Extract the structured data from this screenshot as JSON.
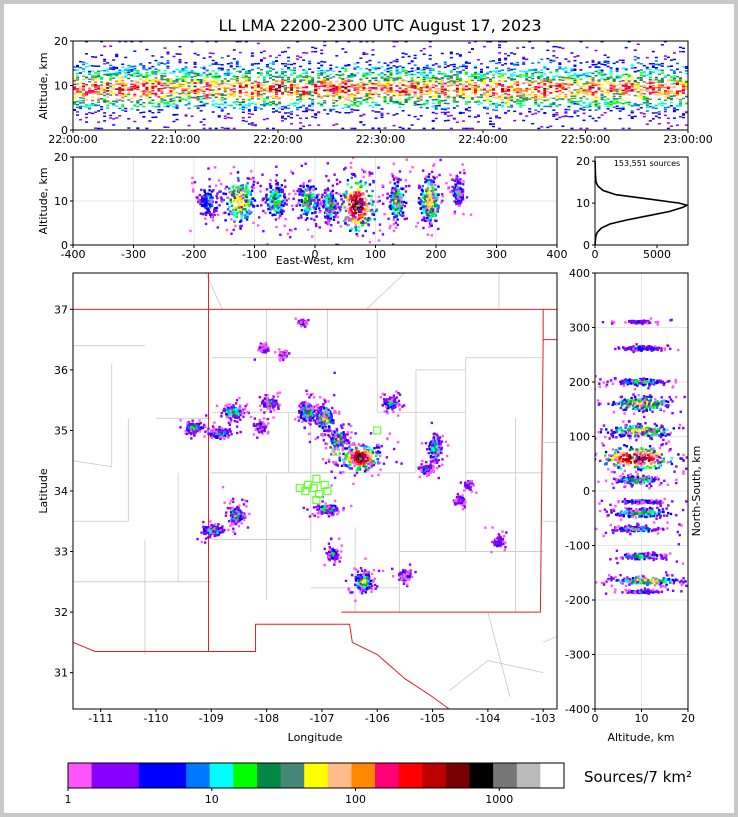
{
  "title": "LL LMA 2200-2300 UTC August 17, 2023",
  "colors": {
    "colorbar": [
      "#ff55ff",
      "#8800ff",
      "#8800ff",
      "#0000ff",
      "#0000ff",
      "#0077ff",
      "#00ffff",
      "#00ff00",
      "#008844",
      "#448877",
      "#ffff00",
      "#ffbb88",
      "#ff8800",
      "#ff0077",
      "#ff0000",
      "#bb0000",
      "#770000",
      "#000000",
      "#777777",
      "#bbbbbb",
      "#ffffff"
    ],
    "state_border": "#dd2222",
    "county_border": "#c8c8c8",
    "marker": "#66ff33"
  },
  "chart_data": [
    {
      "id": "time_height",
      "type": "heatmap",
      "xlabel": "",
      "ylabel": "Altitude, km",
      "x_ticks": [
        "22:00:00",
        "22:10:00",
        "22:20:00",
        "22:30:00",
        "22:40:00",
        "22:50:00",
        "23:00:00"
      ],
      "x_range": [
        "22:00:00",
        "23:00:00"
      ],
      "y_ticks": [
        0,
        10,
        20
      ],
      "ylim": [
        0,
        20
      ],
      "density_profile": {
        "altitude_km": [
          4,
          6,
          8,
          9,
          10,
          11,
          12,
          14,
          16,
          18
        ],
        "relative": [
          0.05,
          0.45,
          0.85,
          1.0,
          0.95,
          0.7,
          0.45,
          0.2,
          0.08,
          0.03
        ]
      }
    },
    {
      "id": "ew_height",
      "type": "heatmap",
      "xlabel": "East-West, km",
      "ylabel": "Altitude, km",
      "x_ticks": [
        -400,
        -300,
        -200,
        -100,
        0,
        100,
        200,
        300,
        400
      ],
      "xlim": [
        -400,
        400
      ],
      "y_ticks": [
        0,
        10,
        20
      ],
      "ylim": [
        0,
        20
      ],
      "clusters": [
        {
          "x": -175,
          "y": 10,
          "w": 30,
          "h": 7,
          "peak": 5
        },
        {
          "x": -125,
          "y": 10,
          "w": 45,
          "h": 9,
          "peak": 11
        },
        {
          "x": -65,
          "y": 10,
          "w": 30,
          "h": 7,
          "peak": 8
        },
        {
          "x": -10,
          "y": 10,
          "w": 30,
          "h": 7,
          "peak": 9
        },
        {
          "x": 25,
          "y": 9,
          "w": 20,
          "h": 6,
          "peak": 9
        },
        {
          "x": 70,
          "y": 9,
          "w": 50,
          "h": 10,
          "peak": 17
        },
        {
          "x": 135,
          "y": 10,
          "w": 22,
          "h": 8,
          "peak": 9
        },
        {
          "x": 190,
          "y": 10,
          "w": 30,
          "h": 9,
          "peak": 11
        },
        {
          "x": 237,
          "y": 12,
          "w": 15,
          "h": 5,
          "peak": 6
        }
      ]
    },
    {
      "id": "altitude_histogram",
      "type": "line",
      "annotation": "153,551 sources",
      "x_ticks": [
        0,
        5000
      ],
      "xlim": [
        0,
        7500
      ],
      "y_ticks": [
        0,
        10,
        20
      ],
      "ylim": [
        0,
        21
      ],
      "profile": {
        "altitude_km": [
          0,
          2,
          3,
          4,
          5,
          6,
          7,
          8,
          9,
          9.5,
          10,
          11,
          12,
          13,
          14,
          15,
          17,
          20
        ],
        "sources": [
          0,
          60,
          180,
          500,
          1200,
          2600,
          4300,
          6000,
          7100,
          7400,
          6800,
          4300,
          1700,
          650,
          250,
          80,
          30,
          10
        ]
      }
    },
    {
      "id": "plan_view",
      "type": "heatmap",
      "xlabel": "Longitude",
      "ylabel": "Latitude",
      "x_ticks": [
        -111,
        -110,
        -109,
        -108,
        -107,
        -106,
        -105,
        -104,
        -103
      ],
      "xlim": [
        -111.5,
        -102.75
      ],
      "y_ticks": [
        31,
        32,
        33,
        34,
        35,
        36,
        37
      ],
      "ylim": [
        30.4,
        37.6
      ],
      "clusters": [
        {
          "lon": -106.3,
          "lat": 34.55,
          "w": 0.55,
          "h": 0.35,
          "peak": 17
        },
        {
          "lon": -106.7,
          "lat": 34.85,
          "w": 0.25,
          "h": 0.25,
          "peak": 10
        },
        {
          "lon": -106.95,
          "lat": 35.2,
          "w": 0.25,
          "h": 0.35,
          "peak": 10
        },
        {
          "lon": -107.25,
          "lat": 35.3,
          "w": 0.25,
          "h": 0.25,
          "peak": 9
        },
        {
          "lon": -106.9,
          "lat": 33.7,
          "w": 0.3,
          "h": 0.12,
          "peak": 9
        },
        {
          "lon": -106.8,
          "lat": 32.95,
          "w": 0.15,
          "h": 0.15,
          "peak": 7
        },
        {
          "lon": -106.25,
          "lat": 32.5,
          "w": 0.25,
          "h": 0.25,
          "peak": 10
        },
        {
          "lon": -105.5,
          "lat": 32.6,
          "w": 0.15,
          "h": 0.12,
          "peak": 6
        },
        {
          "lon": -105.75,
          "lat": 35.45,
          "w": 0.2,
          "h": 0.15,
          "peak": 8
        },
        {
          "lon": -104.95,
          "lat": 34.7,
          "w": 0.2,
          "h": 0.35,
          "peak": 8
        },
        {
          "lon": -105.1,
          "lat": 34.35,
          "w": 0.15,
          "h": 0.12,
          "peak": 6
        },
        {
          "lon": -108.6,
          "lat": 35.3,
          "w": 0.3,
          "h": 0.15,
          "peak": 9
        },
        {
          "lon": -108.85,
          "lat": 34.95,
          "w": 0.3,
          "h": 0.12,
          "peak": 8
        },
        {
          "lon": -109.3,
          "lat": 35.05,
          "w": 0.25,
          "h": 0.12,
          "peak": 8
        },
        {
          "lon": -108.55,
          "lat": 33.6,
          "w": 0.2,
          "h": 0.2,
          "peak": 9
        },
        {
          "lon": -108.95,
          "lat": 33.35,
          "w": 0.3,
          "h": 0.12,
          "peak": 8
        },
        {
          "lon": -107.95,
          "lat": 35.45,
          "w": 0.2,
          "h": 0.12,
          "peak": 8
        },
        {
          "lon": -108.1,
          "lat": 35.05,
          "w": 0.15,
          "h": 0.12,
          "peak": 6
        },
        {
          "lon": -108.05,
          "lat": 36.35,
          "w": 0.12,
          "h": 0.1,
          "peak": 5
        },
        {
          "lon": -104.5,
          "lat": 33.85,
          "w": 0.12,
          "h": 0.1,
          "peak": 5
        },
        {
          "lon": -104.35,
          "lat": 34.1,
          "w": 0.1,
          "h": 0.1,
          "peak": 4
        },
        {
          "lon": -103.8,
          "lat": 33.15,
          "w": 0.15,
          "h": 0.15,
          "peak": 4
        },
        {
          "lon": -107.35,
          "lat": 36.78,
          "w": 0.1,
          "h": 0.06,
          "peak": 4
        },
        {
          "lon": -107.7,
          "lat": 36.25,
          "w": 0.1,
          "h": 0.08,
          "peak": 4
        }
      ],
      "markers": [
        {
          "lon": -107.1,
          "lat": 34.2
        },
        {
          "lon": -107.25,
          "lat": 34.1
        },
        {
          "lon": -107.3,
          "lat": 34.0
        },
        {
          "lon": -107.4,
          "lat": 34.05
        },
        {
          "lon": -107.15,
          "lat": 34.05
        },
        {
          "lon": -107.05,
          "lat": 33.95
        },
        {
          "lon": -107.1,
          "lat": 33.85
        },
        {
          "lon": -106.9,
          "lat": 34.0
        },
        {
          "lon": -106.75,
          "lat": 34.65
        },
        {
          "lon": -106.0,
          "lat": 35.0
        },
        {
          "lon": -106.95,
          "lat": 34.1
        }
      ]
    },
    {
      "id": "ns_height",
      "type": "heatmap",
      "xlabel": "Altitude, km",
      "ylabel": "North-South, km",
      "x_ticks": [
        0,
        10,
        20
      ],
      "xlim": [
        0,
        20
      ],
      "y_ticks": [
        -400,
        -300,
        -200,
        -100,
        0,
        100,
        200,
        300,
        400
      ],
      "ylim": [
        -400,
        400
      ],
      "clusters": [
        {
          "x": 10,
          "y": 310,
          "w": 6,
          "h": 4,
          "peak": 3
        },
        {
          "x": 10,
          "y": 262,
          "w": 8,
          "h": 8,
          "peak": 4
        },
        {
          "x": 10,
          "y": 200,
          "w": 9,
          "h": 10,
          "peak": 7
        },
        {
          "x": 10,
          "y": 160,
          "w": 11,
          "h": 22,
          "peak": 11
        },
        {
          "x": 10,
          "y": 110,
          "w": 12,
          "h": 20,
          "peak": 11
        },
        {
          "x": 9,
          "y": 60,
          "w": 13,
          "h": 35,
          "peak": 17
        },
        {
          "x": 9,
          "y": 20,
          "w": 8,
          "h": 12,
          "peak": 9
        },
        {
          "x": 10,
          "y": -20,
          "w": 8,
          "h": 5,
          "peak": 5
        },
        {
          "x": 10,
          "y": -40,
          "w": 10,
          "h": 14,
          "peak": 9
        },
        {
          "x": 9,
          "y": -70,
          "w": 8,
          "h": 8,
          "peak": 7
        },
        {
          "x": 10,
          "y": -120,
          "w": 7,
          "h": 8,
          "peak": 8
        },
        {
          "x": 11,
          "y": -165,
          "w": 12,
          "h": 12,
          "peak": 11
        },
        {
          "x": 10,
          "y": -185,
          "w": 6,
          "h": 4,
          "peak": 5
        }
      ]
    }
  ],
  "colorbar": {
    "tick_labels": [
      "1",
      "10",
      "100",
      "1000"
    ],
    "units_label": "Sources/7 km²",
    "log_decades": [
      0,
      1,
      2,
      3
    ],
    "max_log": 3.45
  }
}
